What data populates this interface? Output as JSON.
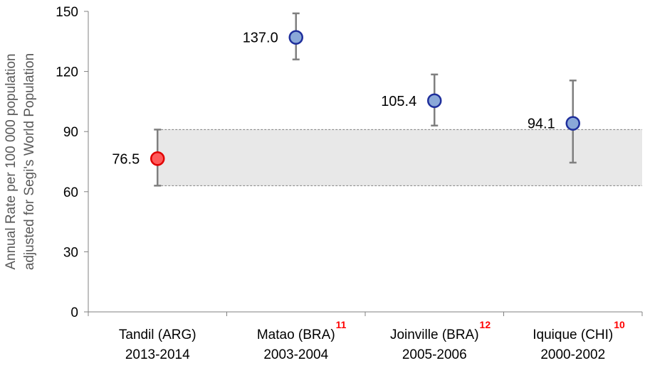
{
  "chart_data": {
    "type": "scatter",
    "title": "",
    "ylabel_lines": [
      "Annual Rate per 100 000 population",
      "adjusted for Segi's World Population"
    ],
    "ylim": [
      0,
      150
    ],
    "yticks": [
      0,
      30,
      60,
      90,
      120,
      150
    ],
    "grid": false,
    "reference_band": {
      "low": 63,
      "high": 91,
      "color": "#e8e8e8"
    },
    "categories": [
      {
        "name": "Tandil (ARG)",
        "period": "2013-2014",
        "ref": ""
      },
      {
        "name": "Matao (BRA)",
        "period": "2003-2004",
        "ref": "11"
      },
      {
        "name": "Joinville (BRA)",
        "period": "2005-2006",
        "ref": "12"
      },
      {
        "name": "Iquique (CHI)",
        "period": "2000-2002",
        "ref": "10"
      }
    ],
    "points": [
      {
        "value": 76.5,
        "label": "76.5",
        "lower": 63,
        "upper": 91,
        "color": "#ff5a5a",
        "stroke": "#e00000"
      },
      {
        "value": 137.0,
        "label": "137.0",
        "lower": 126,
        "upper": 149,
        "color": "#8aa8d8",
        "stroke": "#1f2f9c"
      },
      {
        "value": 105.4,
        "label": "105.4",
        "lower": 93,
        "upper": 118.5,
        "color": "#8aa8d8",
        "stroke": "#1f2f9c"
      },
      {
        "value": 94.1,
        "label": "94.1",
        "lower": 74.5,
        "upper": 115.5,
        "color": "#8aa8d8",
        "stroke": "#1f2f9c"
      }
    ]
  }
}
